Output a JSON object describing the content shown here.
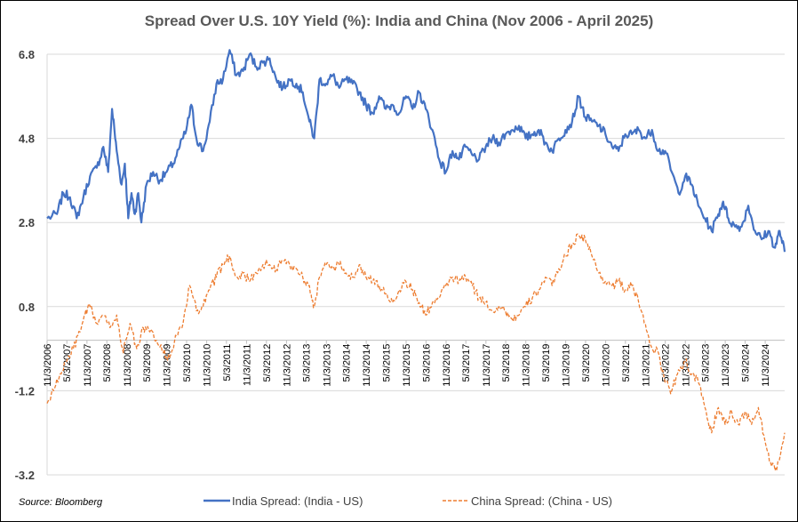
{
  "chart_data": {
    "type": "line",
    "title": "Spread Over U.S. 10Y Yield (%): India and China (Nov 2006 - April 2025)",
    "source": "Source: Bloomberg",
    "ylim": [
      -3.2,
      6.8
    ],
    "yticks": [
      "6.8",
      "4.8",
      "2.8",
      "0.8",
      "-1.2",
      "-3.2"
    ],
    "ytick_values": [
      6.8,
      4.8,
      2.8,
      0.8,
      -1.2,
      -3.2
    ],
    "xlim": [
      "2006-11-03",
      "2025-04-30"
    ],
    "xticks": [
      {
        "label": "11/3/2006",
        "date": "2006-11-03"
      },
      {
        "label": "5/3/2007",
        "date": "2007-05-03"
      },
      {
        "label": "11/3/2007",
        "date": "2007-11-03"
      },
      {
        "label": "5/3/2008",
        "date": "2008-05-03"
      },
      {
        "label": "11/3/2008",
        "date": "2008-11-03"
      },
      {
        "label": "5/3/2009",
        "date": "2009-05-03"
      },
      {
        "label": "11/3/2009",
        "date": "2009-11-03"
      },
      {
        "label": "5/3/2010",
        "date": "2010-05-03"
      },
      {
        "label": "11/3/2010",
        "date": "2010-11-03"
      },
      {
        "label": "5/3/2011",
        "date": "2011-05-03"
      },
      {
        "label": "11/3/2011",
        "date": "2011-11-03"
      },
      {
        "label": "5/3/2012",
        "date": "2012-05-03"
      },
      {
        "label": "11/3/2012",
        "date": "2012-11-03"
      },
      {
        "label": "5/3/2013",
        "date": "2013-05-03"
      },
      {
        "label": "11/3/2013",
        "date": "2013-11-03"
      },
      {
        "label": "5/3/2014",
        "date": "2014-05-03"
      },
      {
        "label": "11/3/2014",
        "date": "2014-11-03"
      },
      {
        "label": "5/3/2015",
        "date": "2015-05-03"
      },
      {
        "label": "11/3/2015",
        "date": "2015-11-03"
      },
      {
        "label": "5/3/2016",
        "date": "2016-05-03"
      },
      {
        "label": "11/3/2016",
        "date": "2016-11-03"
      },
      {
        "label": "5/3/2017",
        "date": "2017-05-03"
      },
      {
        "label": "11/3/2017",
        "date": "2017-11-03"
      },
      {
        "label": "5/3/2018",
        "date": "2018-05-03"
      },
      {
        "label": "11/3/2018",
        "date": "2018-11-03"
      },
      {
        "label": "5/3/2019",
        "date": "2019-05-03"
      },
      {
        "label": "11/3/2019",
        "date": "2019-11-03"
      },
      {
        "label": "5/3/2020",
        "date": "2020-05-03"
      },
      {
        "label": "11/3/2020",
        "date": "2020-11-03"
      },
      {
        "label": "5/3/2021",
        "date": "2021-05-03"
      },
      {
        "label": "11/3/2021",
        "date": "2021-11-03"
      },
      {
        "label": "5/3/2022",
        "date": "2022-05-03"
      },
      {
        "label": "11/3/2022",
        "date": "2022-11-03"
      },
      {
        "label": "5/3/2023",
        "date": "2023-05-03"
      },
      {
        "label": "11/3/2023",
        "date": "2023-11-03"
      },
      {
        "label": "5/3/2024",
        "date": "2024-05-03"
      },
      {
        "label": "11/3/2024",
        "date": "2024-11-03"
      }
    ],
    "grid": true,
    "legend_position": "bottom",
    "series": [
      {
        "name": "India Spread: (India - US)",
        "color": "#4472C4",
        "style": "solid",
        "points": [
          [
            "2006-11-03",
            2.9
          ],
          [
            "2007-02-01",
            3.0
          ],
          [
            "2007-04-01",
            3.5
          ],
          [
            "2007-06-01",
            3.4
          ],
          [
            "2007-08-01",
            2.9
          ],
          [
            "2007-10-01",
            3.4
          ],
          [
            "2007-12-01",
            3.9
          ],
          [
            "2008-02-01",
            4.1
          ],
          [
            "2008-04-01",
            4.6
          ],
          [
            "2008-05-15",
            4.0
          ],
          [
            "2008-06-20",
            5.5
          ],
          [
            "2008-08-01",
            4.5
          ],
          [
            "2008-09-15",
            3.7
          ],
          [
            "2008-10-15",
            4.2
          ],
          [
            "2008-11-15",
            2.9
          ],
          [
            "2008-12-15",
            3.5
          ],
          [
            "2009-01-15",
            3.0
          ],
          [
            "2009-02-15",
            3.5
          ],
          [
            "2009-03-15",
            2.8
          ],
          [
            "2009-05-01",
            3.7
          ],
          [
            "2009-07-01",
            4.0
          ],
          [
            "2009-09-01",
            3.8
          ],
          [
            "2009-11-01",
            4.0
          ],
          [
            "2010-01-01",
            4.2
          ],
          [
            "2010-03-01",
            4.6
          ],
          [
            "2010-05-01",
            5.0
          ],
          [
            "2010-06-15",
            5.6
          ],
          [
            "2010-08-01",
            4.8
          ],
          [
            "2010-10-01",
            4.5
          ],
          [
            "2010-12-01",
            5.2
          ],
          [
            "2011-02-01",
            6.1
          ],
          [
            "2011-04-01",
            6.2
          ],
          [
            "2011-06-01",
            6.9
          ],
          [
            "2011-08-01",
            6.3
          ],
          [
            "2011-10-01",
            6.4
          ],
          [
            "2011-12-01",
            6.8
          ],
          [
            "2012-02-01",
            6.5
          ],
          [
            "2012-04-01",
            6.6
          ],
          [
            "2012-06-01",
            6.7
          ],
          [
            "2012-08-01",
            6.2
          ],
          [
            "2012-10-01",
            6.0
          ],
          [
            "2012-12-01",
            6.2
          ],
          [
            "2013-02-01",
            6.1
          ],
          [
            "2013-04-01",
            5.9
          ],
          [
            "2013-06-01",
            5.2
          ],
          [
            "2013-07-15",
            4.8
          ],
          [
            "2013-09-01",
            6.2
          ],
          [
            "2013-11-01",
            6.1
          ],
          [
            "2014-01-01",
            6.3
          ],
          [
            "2014-03-01",
            6.0
          ],
          [
            "2014-05-01",
            6.2
          ],
          [
            "2014-07-01",
            6.1
          ],
          [
            "2014-09-01",
            5.9
          ],
          [
            "2014-11-01",
            5.6
          ],
          [
            "2015-01-01",
            5.4
          ],
          [
            "2015-03-01",
            5.8
          ],
          [
            "2015-05-01",
            5.5
          ],
          [
            "2015-07-01",
            5.6
          ],
          [
            "2015-09-01",
            5.4
          ],
          [
            "2015-11-01",
            5.8
          ],
          [
            "2016-01-01",
            5.5
          ],
          [
            "2016-03-01",
            5.9
          ],
          [
            "2016-05-01",
            5.5
          ],
          [
            "2016-07-01",
            5.0
          ],
          [
            "2016-09-01",
            4.3
          ],
          [
            "2016-11-01",
            4.0
          ],
          [
            "2017-01-01",
            4.5
          ],
          [
            "2017-03-01",
            4.3
          ],
          [
            "2017-05-01",
            4.6
          ],
          [
            "2017-07-01",
            4.4
          ],
          [
            "2017-09-01",
            4.3
          ],
          [
            "2017-11-01",
            4.6
          ],
          [
            "2018-01-01",
            4.8
          ],
          [
            "2018-03-01",
            4.7
          ],
          [
            "2018-05-01",
            4.9
          ],
          [
            "2018-07-01",
            5.0
          ],
          [
            "2018-09-01",
            5.1
          ],
          [
            "2018-11-01",
            4.8
          ],
          [
            "2019-01-01",
            4.9
          ],
          [
            "2019-03-01",
            5.0
          ],
          [
            "2019-05-01",
            4.7
          ],
          [
            "2019-07-01",
            4.5
          ],
          [
            "2019-09-01",
            4.8
          ],
          [
            "2019-11-01",
            5.0
          ],
          [
            "2020-01-01",
            5.2
          ],
          [
            "2020-03-01",
            5.8
          ],
          [
            "2020-05-01",
            5.3
          ],
          [
            "2020-07-01",
            5.2
          ],
          [
            "2020-09-01",
            5.1
          ],
          [
            "2020-11-01",
            4.9
          ],
          [
            "2021-01-01",
            4.6
          ],
          [
            "2021-03-01",
            4.5
          ],
          [
            "2021-05-01",
            4.9
          ],
          [
            "2021-07-01",
            4.9
          ],
          [
            "2021-09-01",
            5.0
          ],
          [
            "2021-11-01",
            4.8
          ],
          [
            "2022-01-01",
            5.0
          ],
          [
            "2022-03-01",
            4.5
          ],
          [
            "2022-05-01",
            4.5
          ],
          [
            "2022-07-01",
            4.0
          ],
          [
            "2022-09-01",
            3.5
          ],
          [
            "2022-11-01",
            3.9
          ],
          [
            "2023-01-01",
            3.7
          ],
          [
            "2023-03-01",
            3.2
          ],
          [
            "2023-05-01",
            2.9
          ],
          [
            "2023-07-01",
            2.6
          ],
          [
            "2023-09-01",
            3.0
          ],
          [
            "2023-10-15",
            3.3
          ],
          [
            "2023-12-01",
            2.9
          ],
          [
            "2024-02-01",
            2.7
          ],
          [
            "2024-04-01",
            2.7
          ],
          [
            "2024-06-01",
            3.2
          ],
          [
            "2024-08-01",
            2.6
          ],
          [
            "2024-10-01",
            2.4
          ],
          [
            "2024-12-01",
            2.6
          ],
          [
            "2025-02-01",
            2.2
          ],
          [
            "2025-03-15",
            2.6
          ],
          [
            "2025-04-30",
            2.1
          ]
        ]
      },
      {
        "name": "China Spread: (China - US)",
        "color": "#ED7D31",
        "style": "dashed",
        "points": [
          [
            "2006-11-03",
            -1.5
          ],
          [
            "2007-01-01",
            -1.2
          ],
          [
            "2007-03-01",
            -0.8
          ],
          [
            "2007-05-01",
            -0.5
          ],
          [
            "2007-07-01",
            -0.2
          ],
          [
            "2007-09-01",
            0.2
          ],
          [
            "2007-10-15",
            0.6
          ],
          [
            "2007-12-01",
            0.8
          ],
          [
            "2008-02-01",
            0.4
          ],
          [
            "2008-04-01",
            0.6
          ],
          [
            "2008-06-01",
            0.3
          ],
          [
            "2008-08-01",
            0.6
          ],
          [
            "2008-10-01",
            -0.3
          ],
          [
            "2008-12-01",
            0.4
          ],
          [
            "2009-02-01",
            -0.2
          ],
          [
            "2009-04-01",
            0.3
          ],
          [
            "2009-06-01",
            0.2
          ],
          [
            "2009-08-01",
            0.0
          ],
          [
            "2009-10-01",
            -0.3
          ],
          [
            "2009-12-01",
            -0.4
          ],
          [
            "2010-02-01",
            0.1
          ],
          [
            "2010-04-01",
            0.4
          ],
          [
            "2010-06-01",
            1.3
          ],
          [
            "2010-08-01",
            0.7
          ],
          [
            "2010-10-01",
            0.8
          ],
          [
            "2010-12-01",
            1.2
          ],
          [
            "2011-02-01",
            1.5
          ],
          [
            "2011-04-01",
            1.8
          ],
          [
            "2011-06-01",
            2.0
          ],
          [
            "2011-08-01",
            1.5
          ],
          [
            "2011-10-01",
            1.6
          ],
          [
            "2011-12-01",
            1.4
          ],
          [
            "2012-02-01",
            1.6
          ],
          [
            "2012-04-01",
            1.8
          ],
          [
            "2012-06-01",
            1.8
          ],
          [
            "2012-08-01",
            1.7
          ],
          [
            "2012-10-01",
            1.9
          ],
          [
            "2012-12-01",
            1.8
          ],
          [
            "2013-02-01",
            1.7
          ],
          [
            "2013-04-01",
            1.5
          ],
          [
            "2013-06-01",
            1.3
          ],
          [
            "2013-07-15",
            0.8
          ],
          [
            "2013-09-01",
            1.5
          ],
          [
            "2013-11-01",
            1.8
          ],
          [
            "2014-01-01",
            1.7
          ],
          [
            "2014-03-01",
            1.8
          ],
          [
            "2014-05-01",
            1.6
          ],
          [
            "2014-07-01",
            1.5
          ],
          [
            "2014-09-01",
            1.8
          ],
          [
            "2014-11-01",
            1.5
          ],
          [
            "2015-01-01",
            1.4
          ],
          [
            "2015-03-01",
            1.3
          ],
          [
            "2015-05-01",
            1.1
          ],
          [
            "2015-07-01",
            0.9
          ],
          [
            "2015-09-01",
            1.2
          ],
          [
            "2015-11-01",
            1.4
          ],
          [
            "2016-01-01",
            1.2
          ],
          [
            "2016-03-01",
            0.9
          ],
          [
            "2016-05-01",
            0.6
          ],
          [
            "2016-07-01",
            0.9
          ],
          [
            "2016-09-01",
            1.0
          ],
          [
            "2016-11-01",
            1.3
          ],
          [
            "2017-01-01",
            1.5
          ],
          [
            "2017-03-01",
            1.4
          ],
          [
            "2017-05-01",
            1.5
          ],
          [
            "2017-07-01",
            1.3
          ],
          [
            "2017-09-01",
            1.0
          ],
          [
            "2017-11-01",
            0.9
          ],
          [
            "2018-01-01",
            0.7
          ],
          [
            "2018-03-01",
            0.8
          ],
          [
            "2018-05-01",
            0.7
          ],
          [
            "2018-07-01",
            0.5
          ],
          [
            "2018-09-01",
            0.6
          ],
          [
            "2018-11-01",
            0.8
          ],
          [
            "2019-01-01",
            1.0
          ],
          [
            "2019-03-01",
            1.2
          ],
          [
            "2019-05-01",
            1.5
          ],
          [
            "2019-07-01",
            1.3
          ],
          [
            "2019-09-01",
            1.7
          ],
          [
            "2019-11-01",
            2.0
          ],
          [
            "2020-01-01",
            2.3
          ],
          [
            "2020-03-01",
            2.5
          ],
          [
            "2020-05-01",
            2.4
          ],
          [
            "2020-07-01",
            2.0
          ],
          [
            "2020-09-01",
            1.6
          ],
          [
            "2020-11-01",
            1.4
          ],
          [
            "2021-01-01",
            1.3
          ],
          [
            "2021-03-01",
            1.4
          ],
          [
            "2021-05-01",
            1.2
          ],
          [
            "2021-07-01",
            1.3
          ],
          [
            "2021-09-01",
            0.9
          ],
          [
            "2021-11-01",
            0.4
          ],
          [
            "2022-01-01",
            -0.2
          ],
          [
            "2022-03-01",
            -0.3
          ],
          [
            "2022-05-01",
            -1.0
          ],
          [
            "2022-07-01",
            -1.2
          ],
          [
            "2022-09-01",
            -0.7
          ],
          [
            "2022-11-01",
            -0.5
          ],
          [
            "2023-01-01",
            -0.8
          ],
          [
            "2023-03-01",
            -1.0
          ],
          [
            "2023-05-01",
            -1.6
          ],
          [
            "2023-07-01",
            -2.2
          ],
          [
            "2023-09-01",
            -1.6
          ],
          [
            "2023-11-01",
            -2.0
          ],
          [
            "2024-01-01",
            -1.7
          ],
          [
            "2024-03-01",
            -2.0
          ],
          [
            "2024-05-01",
            -1.7
          ],
          [
            "2024-07-01",
            -2.0
          ],
          [
            "2024-09-01",
            -1.6
          ],
          [
            "2024-11-01",
            -2.4
          ],
          [
            "2025-01-01",
            -3.0
          ],
          [
            "2025-02-15",
            -3.1
          ],
          [
            "2025-04-30",
            -2.2
          ]
        ]
      }
    ]
  }
}
